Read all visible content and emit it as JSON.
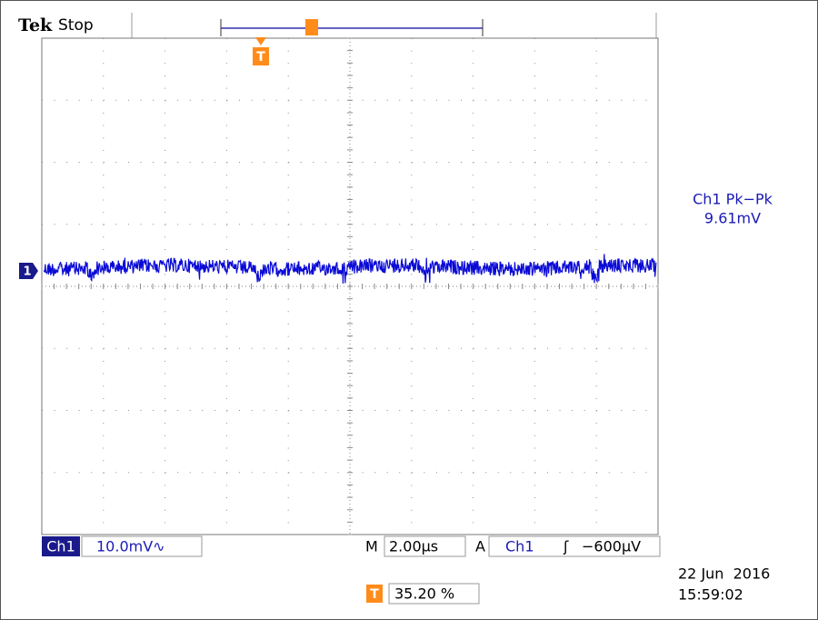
{
  "header": {
    "brand": "Tek",
    "status": "Stop"
  },
  "measurement": {
    "label": "Ch1 Pk−Pk",
    "value": "9.61mV"
  },
  "channel_marker": "1",
  "trigger_marker": "T",
  "bottom_bar": {
    "channel": "Ch1",
    "scale": "10.0mV∿",
    "timebase_prefix": "M",
    "timebase": "2.00µs",
    "trigger_prefix": "A",
    "trigger_source": "Ch1",
    "trigger_slope": "ʃ",
    "trigger_level": "−600µV"
  },
  "trigger_position": "35.20 %",
  "timestamp": {
    "date": "22 Jun  2016",
    "time": "15:59:02"
  }
}
